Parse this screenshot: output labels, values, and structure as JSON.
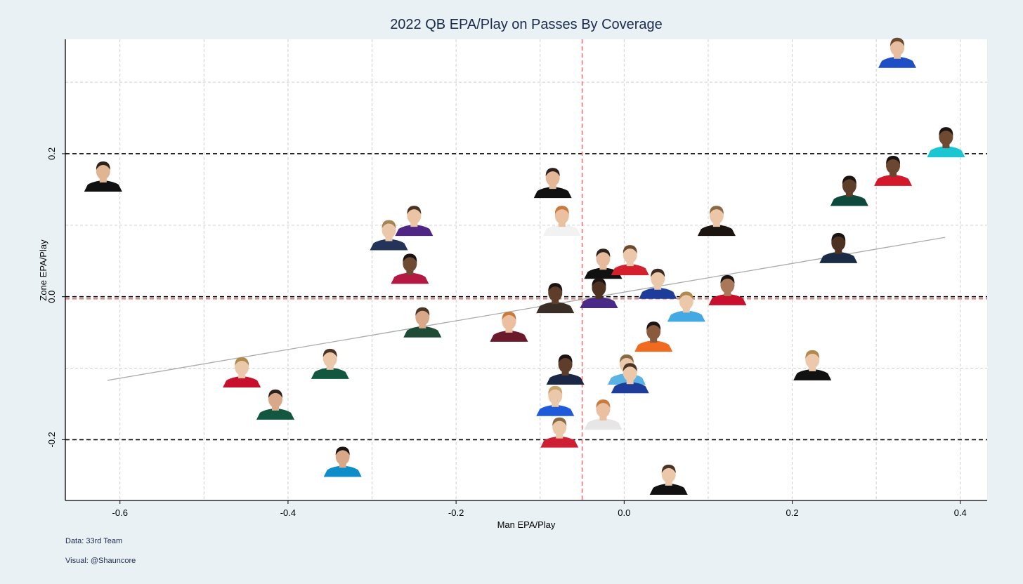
{
  "chart_data": {
    "type": "scatter",
    "title": "2022 QB EPA/Play on Passes By Coverage",
    "xlabel": "Man EPA/Play",
    "ylabel": "Zone EPA/Play",
    "xlim": [
      -0.665,
      0.432
    ],
    "ylim": [
      -0.285,
      0.36
    ],
    "x_ticks": [
      "-0.6",
      "-0.4",
      "-0.2",
      "0.0",
      "0.2",
      "0.4"
    ],
    "x_tick_values": [
      -0.6,
      -0.4,
      -0.2,
      0.0,
      0.2,
      0.4
    ],
    "y_ticks": [
      "-0.2",
      "0.0",
      "0.2"
    ],
    "y_tick_values": [
      -0.2,
      0.0,
      0.2
    ],
    "x_grid": [
      -0.5,
      -0.3,
      -0.1,
      0.1,
      0.3
    ],
    "y_grid": [
      -0.1,
      0.1,
      0.3
    ],
    "reference_lines": {
      "horizontal_black_dashed": [
        -0.2,
        0.0,
        0.2
      ],
      "vertical_red_dashed": -0.05,
      "horizontal_red_dashed": -0.003
    },
    "trend_line": {
      "x": [
        -0.615,
        0.382
      ],
      "y": [
        -0.117,
        0.083
      ]
    },
    "grid": true,
    "marker": "player headshot",
    "points": [
      {
        "x": 0.325,
        "y": 0.32,
        "jersey": "#1f4fc4",
        "skin": "#e7bfa0",
        "hair": "#6b4a2e"
      },
      {
        "x": 0.383,
        "y": 0.195,
        "jersey": "#19c6d1",
        "skin": "#6e4a33",
        "hair": "#1b1311"
      },
      {
        "x": 0.32,
        "y": 0.155,
        "jersey": "#d3182b",
        "skin": "#6b4630",
        "hair": "#1b1311"
      },
      {
        "x": 0.268,
        "y": 0.127,
        "jersey": "#0e4a3c",
        "skin": "#5e3d2a",
        "hair": "#1b1311"
      },
      {
        "x": 0.255,
        "y": 0.047,
        "jersey": "#1b2a45",
        "skin": "#4d3222",
        "hair": "#1b1311"
      },
      {
        "x": 0.224,
        "y": -0.117,
        "jersey": "#111111",
        "skin": "#ecc9ad",
        "hair": "#b08a4a"
      },
      {
        "x": -0.62,
        "y": 0.147,
        "jersey": "#111111",
        "skin": "#e0b594",
        "hair": "#2e211b"
      },
      {
        "x": -0.085,
        "y": 0.138,
        "jersey": "#111111",
        "skin": "#e2b898",
        "hair": "#2e211b"
      },
      {
        "x": -0.25,
        "y": 0.085,
        "jersey": "#4f2683",
        "skin": "#ebc4a4",
        "hair": "#4a3525"
      },
      {
        "x": -0.28,
        "y": 0.065,
        "jersey": "#243459",
        "skin": "#ecc8aa",
        "hair": "#a58352"
      },
      {
        "x": -0.255,
        "y": 0.018,
        "jersey": "#b31942",
        "skin": "#6e4a33",
        "hair": "#1b1311"
      },
      {
        "x": -0.074,
        "y": 0.085,
        "jersey": "#f2f2f2",
        "skin": "#ebc0a0",
        "hair": "#c97b3e"
      },
      {
        "x": 0.11,
        "y": 0.085,
        "jersey": "#1b1411",
        "skin": "#ebc6a8",
        "hair": "#8a6a45"
      },
      {
        "x": -0.025,
        "y": 0.025,
        "jersey": "#111111",
        "skin": "#e6bb9c",
        "hair": "#2e211b"
      },
      {
        "x": 0.007,
        "y": 0.03,
        "jersey": "#d31f2e",
        "skin": "#ecc8aa",
        "hair": "#6b4a2e"
      },
      {
        "x": 0.04,
        "y": -0.003,
        "jersey": "#1e3c9a",
        "skin": "#ecc8aa",
        "hair": "#3a2a20"
      },
      {
        "x": 0.123,
        "y": -0.012,
        "jersey": "#c8102e",
        "skin": "#a97858",
        "hair": "#1b1311"
      },
      {
        "x": 0.074,
        "y": -0.035,
        "jersey": "#44a8e3",
        "skin": "#ecc8aa",
        "hair": "#b08a4a"
      },
      {
        "x": -0.082,
        "y": -0.023,
        "jersey": "#3a2d26",
        "skin": "#5e3d2a",
        "hair": "#1b1311"
      },
      {
        "x": -0.03,
        "y": -0.016,
        "jersey": "#4a2a87",
        "skin": "#4d3222",
        "hair": "#1b1311"
      },
      {
        "x": -0.24,
        "y": -0.057,
        "jersey": "#1d4b35",
        "skin": "#d9a888",
        "hair": "#4a3525"
      },
      {
        "x": -0.137,
        "y": -0.063,
        "jersey": "#6a1a2b",
        "skin": "#ebc0a0",
        "hair": "#c97b3e"
      },
      {
        "x": 0.035,
        "y": -0.077,
        "jersey": "#f06a1f",
        "skin": "#8a5a3e",
        "hair": "#1b1311"
      },
      {
        "x": -0.07,
        "y": -0.123,
        "jersey": "#1b2845",
        "skin": "#5e3d2a",
        "hair": "#1b1311"
      },
      {
        "x": 0.003,
        "y": -0.123,
        "jersey": "#5bb2e5",
        "skin": "#ecc8aa",
        "hair": "#8a6a45"
      },
      {
        "x": 0.007,
        "y": -0.135,
        "jersey": "#1e3c9a",
        "skin": "#ecc8aa",
        "hair": "#4a3525"
      },
      {
        "x": -0.082,
        "y": -0.167,
        "jersey": "#1f5bd8",
        "skin": "#ecc8aa",
        "hair": "#c8a46a"
      },
      {
        "x": -0.025,
        "y": -0.186,
        "jersey": "#e6e6e6",
        "skin": "#ebc0a0",
        "hair": "#c97b3e"
      },
      {
        "x": -0.077,
        "y": -0.211,
        "jersey": "#cf1f35",
        "skin": "#ecc8aa",
        "hair": "#8a6a45"
      },
      {
        "x": 0.053,
        "y": -0.277,
        "jersey": "#111111",
        "skin": "#ecc8aa",
        "hair": "#4a3525"
      },
      {
        "x": -0.455,
        "y": -0.127,
        "jersey": "#c8102e",
        "skin": "#ecc8aa",
        "hair": "#b08a4a"
      },
      {
        "x": -0.35,
        "y": -0.115,
        "jersey": "#125740",
        "skin": "#ecc8aa",
        "hair": "#4a3525"
      },
      {
        "x": -0.415,
        "y": -0.172,
        "jersey": "#125740",
        "skin": "#d9a888",
        "hair": "#2e211b"
      },
      {
        "x": -0.335,
        "y": -0.252,
        "jersey": "#0d8ec9",
        "skin": "#d9a888",
        "hair": "#1b1311"
      }
    ]
  },
  "footer": {
    "data_source": "Data: 33rd Team",
    "visual_credit": "Visual: @Shauncore"
  }
}
